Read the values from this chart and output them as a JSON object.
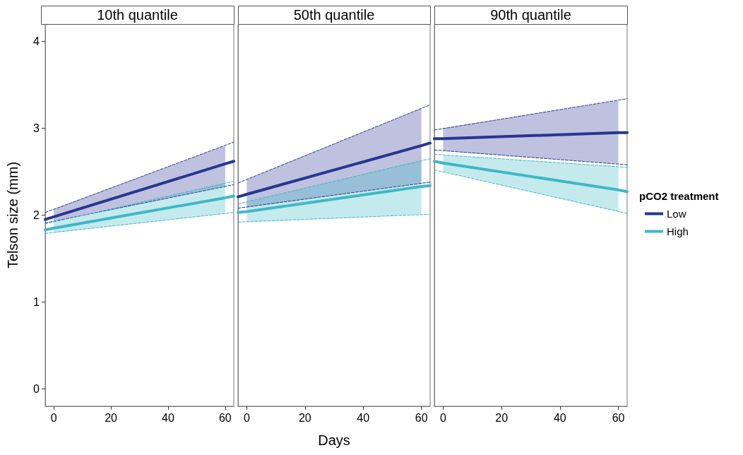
{
  "chart_data": [
    {
      "type": "line",
      "title": "10th quantile",
      "ylabel": "Telson size (mm)",
      "xlim": [
        -3,
        63
      ],
      "xticks": [
        0,
        20,
        40,
        60
      ],
      "ylim": [
        -0.2,
        4.2
      ],
      "yticks": [
        0,
        1,
        2,
        3,
        4
      ],
      "tick_labels": "xy",
      "series": [
        {
          "color": "#283593",
          "x": [
            -3,
            0,
            60,
            63
          ],
          "values": [
            1.95,
            1.98,
            2.59,
            2.62
          ],
          "lower": [
            null,
            1.93,
            2.33,
            null
          ],
          "upper": [
            null,
            2.07,
            2.8,
            null
          ]
        },
        {
          "color": "#3fb8c6",
          "x": [
            -3,
            0,
            60,
            63
          ],
          "values": [
            1.83,
            1.85,
            2.2,
            2.22
          ],
          "lower": [
            null,
            1.8,
            2.02,
            null
          ],
          "upper": [
            null,
            1.92,
            2.37,
            null
          ]
        },
        {
          "color": "#283593",
          "line_style": "dashed",
          "x": [
            -3,
            63
          ],
          "values": [
            2.03,
            2.84
          ]
        },
        {
          "color": "#283593",
          "line_style": "dashed",
          "x": [
            -3,
            63
          ],
          "values": [
            1.91,
            2.35
          ]
        },
        {
          "color": "#3fb8c6",
          "line_style": "dashed",
          "x": [
            -3,
            63
          ],
          "values": [
            1.9,
            2.39
          ]
        },
        {
          "color": "#3fb8c6",
          "line_style": "dashed",
          "x": [
            -3,
            63
          ],
          "values": [
            1.79,
            2.03
          ]
        }
      ]
    },
    {
      "type": "line",
      "title": "50th quantile",
      "xlabel": "Days",
      "xlim": [
        -3,
        63
      ],
      "xticks": [
        0,
        20,
        40,
        60
      ],
      "ylim": [
        -0.2,
        4.2
      ],
      "yticks": [
        0,
        1,
        2,
        3,
        4
      ],
      "tick_labels": "x",
      "series": [
        {
          "color": "#283593",
          "x": [
            -3,
            0,
            60,
            63
          ],
          "values": [
            2.21,
            2.24,
            2.8,
            2.83
          ],
          "lower": [
            null,
            2.09,
            2.37,
            null
          ],
          "upper": [
            null,
            2.41,
            3.23,
            null
          ]
        },
        {
          "color": "#3fb8c6",
          "x": [
            -3,
            0,
            60,
            63
          ],
          "values": [
            2.03,
            2.04,
            2.33,
            2.34
          ],
          "lower": [
            null,
            1.92,
            2.01,
            null
          ],
          "upper": [
            null,
            2.15,
            2.63,
            null
          ]
        },
        {
          "color": "#283593",
          "line_style": "dashed",
          "x": [
            -3,
            63
          ],
          "values": [
            2.37,
            3.27
          ]
        },
        {
          "color": "#283593",
          "line_style": "dashed",
          "x": [
            -3,
            63
          ],
          "values": [
            2.08,
            2.38
          ]
        },
        {
          "color": "#3fb8c6",
          "line_style": "dashed",
          "x": [
            -3,
            63
          ],
          "values": [
            2.13,
            2.65
          ]
        },
        {
          "color": "#3fb8c6",
          "line_style": "dashed",
          "x": [
            -3,
            63
          ],
          "values": [
            1.92,
            2.01
          ]
        }
      ]
    },
    {
      "type": "line",
      "title": "90th quantile",
      "legend_title": "pCO2 treatment",
      "legend": "right",
      "xlim": [
        -3,
        63
      ],
      "xticks": [
        0,
        20,
        40,
        60
      ],
      "ylim": [
        -0.2,
        4.2
      ],
      "yticks": [
        0,
        1,
        2,
        3,
        4
      ],
      "tick_labels": "x",
      "series": [
        {
          "name": "Low",
          "color": "#283593",
          "x": [
            -3,
            0,
            60,
            63
          ],
          "values": [
            2.88,
            2.88,
            2.95,
            2.95
          ],
          "lower": [
            null,
            2.74,
            2.59,
            null
          ],
          "upper": [
            null,
            3.0,
            3.32,
            null
          ]
        },
        {
          "name": "High",
          "color": "#3fb8c6",
          "x": [
            -3,
            0,
            60,
            63
          ],
          "values": [
            2.62,
            2.6,
            2.29,
            2.27
          ],
          "lower": [
            null,
            2.5,
            2.04,
            null
          ],
          "upper": [
            null,
            2.69,
            2.56,
            null
          ]
        },
        {
          "color": "#283593",
          "line_style": "dashed",
          "x": [
            -3,
            63
          ],
          "values": [
            2.98,
            3.34
          ]
        },
        {
          "color": "#283593",
          "line_style": "dashed",
          "x": [
            -3,
            63
          ],
          "values": [
            2.75,
            2.58
          ]
        },
        {
          "color": "#3fb8c6",
          "line_style": "dashed",
          "x": [
            -3,
            63
          ],
          "values": [
            2.7,
            2.55
          ]
        },
        {
          "color": "#3fb8c6",
          "line_style": "dashed",
          "x": [
            -3,
            63
          ],
          "values": [
            2.52,
            2.02
          ]
        }
      ]
    }
  ]
}
